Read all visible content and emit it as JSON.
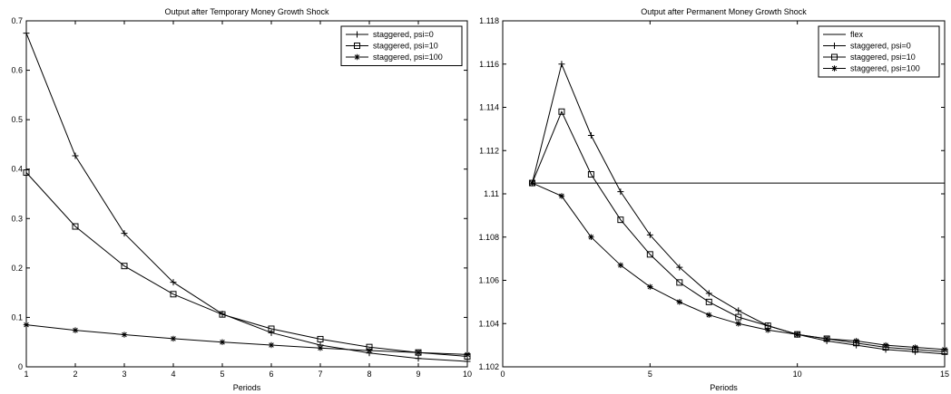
{
  "chart_data": [
    {
      "type": "line",
      "title": "Output after Temporary Money Growth Shock",
      "xlabel": "Periods",
      "ylabel": "",
      "xlim": [
        1,
        10
      ],
      "ylim": [
        0,
        0.7
      ],
      "xticks": [
        "1",
        "2",
        "3",
        "4",
        "5",
        "6",
        "7",
        "8",
        "9",
        "10"
      ],
      "yticks": [
        "0",
        "0.1",
        "0.2",
        "0.3",
        "0.4",
        "0.5",
        "0.6",
        "0.7"
      ],
      "legend_position": "top-right",
      "x": [
        1,
        2,
        3,
        4,
        5,
        6,
        7,
        8,
        9,
        10
      ],
      "series": [
        {
          "name": "staggered, psi=0",
          "marker": "plus",
          "values": [
            0.675,
            0.427,
            0.27,
            0.171,
            0.107,
            0.069,
            0.044,
            0.028,
            0.017,
            0.011
          ]
        },
        {
          "name": "staggered, psi=10",
          "marker": "square",
          "values": [
            0.393,
            0.284,
            0.204,
            0.147,
            0.106,
            0.077,
            0.056,
            0.04,
            0.029,
            0.021
          ]
        },
        {
          "name": "staggered, psi=100",
          "marker": "star",
          "values": [
            0.085,
            0.074,
            0.065,
            0.057,
            0.05,
            0.044,
            0.038,
            0.033,
            0.029,
            0.025
          ]
        }
      ]
    },
    {
      "type": "line",
      "title": "Output after Permanent Money Growth Shock",
      "xlabel": "Periods",
      "ylabel": "",
      "xlim": [
        0,
        15
      ],
      "ylim": [
        1.102,
        1.118
      ],
      "xticks": [
        "0",
        "5",
        "10",
        "15"
      ],
      "yticks": [
        "1.102",
        "1.104",
        "1.106",
        "1.108",
        "1.11",
        "1.112",
        "1.114",
        "1.116",
        "1.118"
      ],
      "legend_position": "top-right",
      "x": [
        1,
        2,
        3,
        4,
        5,
        6,
        7,
        8,
        9,
        10,
        11,
        12,
        13,
        14,
        15
      ],
      "series": [
        {
          "name": "flex",
          "marker": "none",
          "values": [
            1.1105,
            1.1105,
            1.1105,
            1.1105,
            1.1105,
            1.1105,
            1.1105,
            1.1105,
            1.1105,
            1.1105,
            1.1105,
            1.1105,
            1.1105,
            1.1105,
            1.1105
          ]
        },
        {
          "name": "staggered, psi=0",
          "marker": "plus",
          "values": [
            1.1105,
            1.116,
            1.1127,
            1.1101,
            1.1081,
            1.1066,
            1.1054,
            1.1046,
            1.1039,
            1.1035,
            1.1032,
            1.103,
            1.1028,
            1.1027,
            1.1026
          ]
        },
        {
          "name": "staggered, psi=10",
          "marker": "square",
          "values": [
            1.1105,
            1.1138,
            1.1109,
            1.1088,
            1.1072,
            1.1059,
            1.105,
            1.1043,
            1.1039,
            1.1035,
            1.1033,
            1.1031,
            1.1029,
            1.1028,
            1.1027
          ]
        },
        {
          "name": "staggered, psi=100",
          "marker": "star",
          "values": [
            1.1105,
            1.1099,
            1.108,
            1.1067,
            1.1057,
            1.105,
            1.1044,
            1.104,
            1.1037,
            1.1035,
            1.1033,
            1.1032,
            1.103,
            1.1029,
            1.1028
          ]
        }
      ]
    }
  ]
}
